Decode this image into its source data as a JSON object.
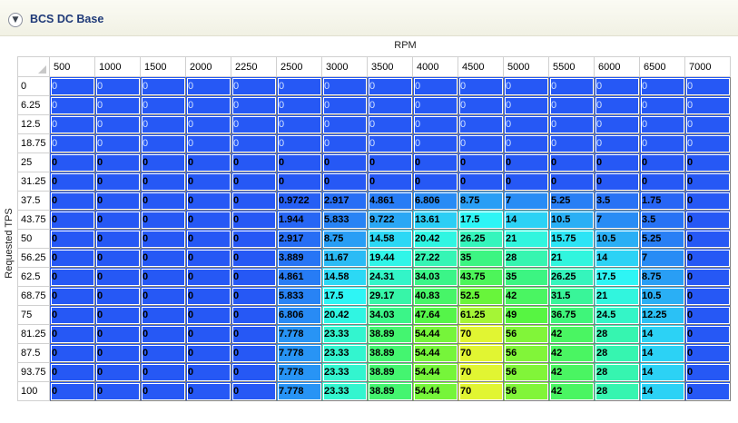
{
  "panel": {
    "title": "BCS DC Base",
    "collapse_icon": "chevron-circle-down-icon"
  },
  "axes": {
    "x_label": "RPM",
    "y_label": "Requested TPS"
  },
  "table": {
    "columns": [
      "500",
      "1000",
      "1500",
      "2000",
      "2250",
      "2500",
      "3000",
      "3500",
      "4000",
      "4500",
      "5000",
      "5500",
      "6000",
      "6500",
      "7000"
    ],
    "rows": [
      {
        "tps": "0",
        "values": [
          "0",
          "0",
          "0",
          "0",
          "0",
          "0",
          "0",
          "0",
          "0",
          "0",
          "0",
          "0",
          "0",
          "0",
          "0"
        ]
      },
      {
        "tps": "6.25",
        "values": [
          "0",
          "0",
          "0",
          "0",
          "0",
          "0",
          "0",
          "0",
          "0",
          "0",
          "0",
          "0",
          "0",
          "0",
          "0"
        ]
      },
      {
        "tps": "12.5",
        "values": [
          "0",
          "0",
          "0",
          "0",
          "0",
          "0",
          "0",
          "0",
          "0",
          "0",
          "0",
          "0",
          "0",
          "0",
          "0"
        ]
      },
      {
        "tps": "18.75",
        "values": [
          "0",
          "0",
          "0",
          "0",
          "0",
          "0",
          "0",
          "0",
          "0",
          "0",
          "0",
          "0",
          "0",
          "0",
          "0"
        ]
      },
      {
        "tps": "25",
        "values": [
          "0",
          "0",
          "0",
          "0",
          "0",
          "0",
          "0",
          "0",
          "0",
          "0",
          "0",
          "0",
          "0",
          "0",
          "0"
        ]
      },
      {
        "tps": "31.25",
        "values": [
          "0",
          "0",
          "0",
          "0",
          "0",
          "0",
          "0",
          "0",
          "0",
          "0",
          "0",
          "0",
          "0",
          "0",
          "0"
        ]
      },
      {
        "tps": "37.5",
        "values": [
          "0",
          "0",
          "0",
          "0",
          "0",
          "0.9722",
          "2.917",
          "4.861",
          "6.806",
          "8.75",
          "7",
          "5.25",
          "3.5",
          "1.75",
          "0"
        ]
      },
      {
        "tps": "43.75",
        "values": [
          "0",
          "0",
          "0",
          "0",
          "0",
          "1.944",
          "5.833",
          "9.722",
          "13.61",
          "17.5",
          "14",
          "10.5",
          "7",
          "3.5",
          "0"
        ]
      },
      {
        "tps": "50",
        "values": [
          "0",
          "0",
          "0",
          "0",
          "0",
          "2.917",
          "8.75",
          "14.58",
          "20.42",
          "26.25",
          "21",
          "15.75",
          "10.5",
          "5.25",
          "0"
        ]
      },
      {
        "tps": "56.25",
        "values": [
          "0",
          "0",
          "0",
          "0",
          "0",
          "3.889",
          "11.67",
          "19.44",
          "27.22",
          "35",
          "28",
          "21",
          "14",
          "7",
          "0"
        ]
      },
      {
        "tps": "62.5",
        "values": [
          "0",
          "0",
          "0",
          "0",
          "0",
          "4.861",
          "14.58",
          "24.31",
          "34.03",
          "43.75",
          "35",
          "26.25",
          "17.5",
          "8.75",
          "0"
        ]
      },
      {
        "tps": "68.75",
        "values": [
          "0",
          "0",
          "0",
          "0",
          "0",
          "5.833",
          "17.5",
          "29.17",
          "40.83",
          "52.5",
          "42",
          "31.5",
          "21",
          "10.5",
          "0"
        ]
      },
      {
        "tps": "75",
        "values": [
          "0",
          "0",
          "0",
          "0",
          "0",
          "6.806",
          "20.42",
          "34.03",
          "47.64",
          "61.25",
          "49",
          "36.75",
          "24.5",
          "12.25",
          "0"
        ]
      },
      {
        "tps": "81.25",
        "values": [
          "0",
          "0",
          "0",
          "0",
          "0",
          "7.778",
          "23.33",
          "38.89",
          "54.44",
          "70",
          "56",
          "42",
          "28",
          "14",
          "0"
        ]
      },
      {
        "tps": "87.5",
        "values": [
          "0",
          "0",
          "0",
          "0",
          "0",
          "7.778",
          "23.33",
          "38.89",
          "54.44",
          "70",
          "56",
          "42",
          "28",
          "14",
          "0"
        ]
      },
      {
        "tps": "93.75",
        "values": [
          "0",
          "0",
          "0",
          "0",
          "0",
          "7.778",
          "23.33",
          "38.89",
          "54.44",
          "70",
          "56",
          "42",
          "28",
          "14",
          "0"
        ]
      },
      {
        "tps": "100",
        "values": [
          "0",
          "0",
          "0",
          "0",
          "0",
          "7.778",
          "23.33",
          "38.89",
          "54.44",
          "70",
          "56",
          "42",
          "28",
          "14",
          "0"
        ]
      }
    ]
  }
}
